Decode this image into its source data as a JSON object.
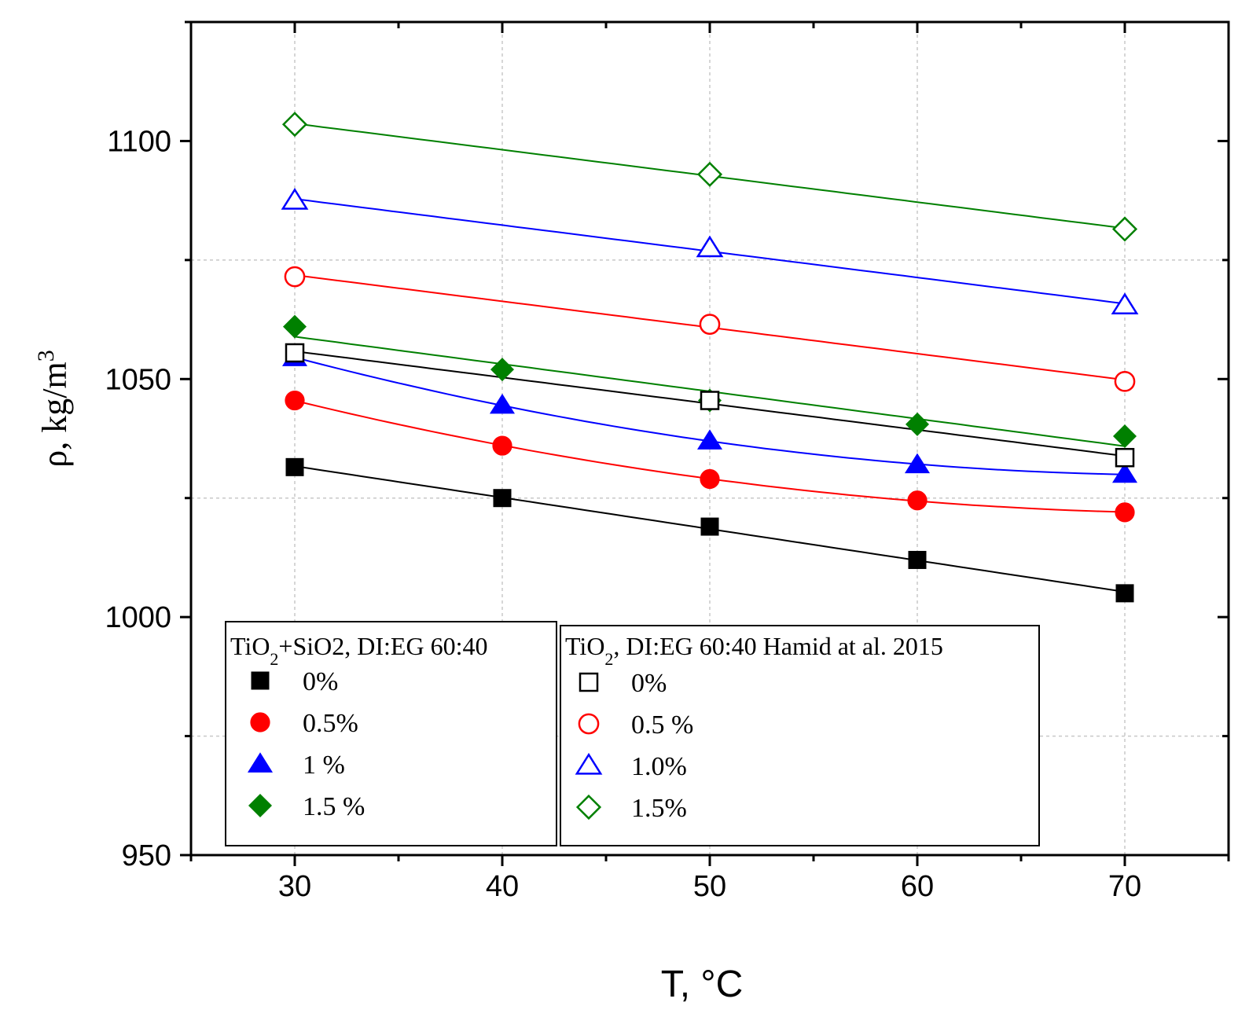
{
  "chart_data": {
    "type": "line",
    "xlabel": "T, °C",
    "ylabel": "ρ, kg/m3",
    "xlim": [
      25,
      75
    ],
    "ylim": [
      950,
      1125
    ],
    "xticks": [
      30,
      40,
      50,
      60,
      70
    ],
    "yticks": [
      950,
      1000,
      1050,
      1100
    ],
    "grid": true,
    "legends": [
      {
        "title": "TiO2+SiO2, DI:EG 60:40",
        "entries": [
          "0%",
          "0.5%",
          "1 %",
          "1.5 %"
        ]
      },
      {
        "title": "TiO2, DI:EG 60:40 Hamid at al. 2015",
        "entries": [
          "0%",
          "0.5 %",
          "1.0%",
          "1.5%"
        ]
      }
    ],
    "series": [
      {
        "name": "0%",
        "group": "TiO2+SiO2, DI:EG 60:40",
        "marker": "square",
        "filled": true,
        "color": "#000000",
        "fit": "linear",
        "x": [
          30,
          40,
          50,
          60,
          70
        ],
        "y": [
          1031.5,
          1025,
          1019,
          1012,
          1005
        ]
      },
      {
        "name": "0.5%",
        "group": "TiO2+SiO2, DI:EG 60:40",
        "marker": "circle",
        "filled": true,
        "color": "#ff0000",
        "fit": "curve",
        "x": [
          30,
          40,
          50,
          60,
          70
        ],
        "y": [
          1045.5,
          1036,
          1029,
          1024.5,
          1022
        ]
      },
      {
        "name": "1 %",
        "group": "TiO2+SiO2, DI:EG 60:40",
        "marker": "triangle",
        "filled": true,
        "color": "#0000ff",
        "fit": "curve",
        "x": [
          30,
          40,
          50,
          60,
          70
        ],
        "y": [
          1054.5,
          1044.5,
          1037,
          1032,
          1030
        ]
      },
      {
        "name": "1.5 %",
        "group": "TiO2+SiO2, DI:EG 60:40",
        "marker": "diamond",
        "filled": true,
        "color": "#008000",
        "fit": "linear",
        "x": [
          30,
          40,
          50,
          60,
          70
        ],
        "y": [
          1061,
          1052,
          1045.5,
          1040.5,
          1038
        ]
      },
      {
        "name": "0%",
        "group": "TiO2, DI:EG 60:40 Hamid at al. 2015",
        "marker": "square",
        "filled": false,
        "color": "#000000",
        "fit": "linear",
        "x": [
          30,
          50,
          70
        ],
        "y": [
          1055.5,
          1045.5,
          1033.5
        ]
      },
      {
        "name": "0.5 %",
        "group": "TiO2, DI:EG 60:40 Hamid at al. 2015",
        "marker": "circle",
        "filled": false,
        "color": "#ff0000",
        "fit": "linear",
        "x": [
          30,
          50,
          70
        ],
        "y": [
          1071.5,
          1061.5,
          1049.5
        ]
      },
      {
        "name": "1.0%",
        "group": "TiO2, DI:EG 60:40 Hamid at al. 2015",
        "marker": "triangle",
        "filled": false,
        "color": "#0000ff",
        "fit": "linear",
        "x": [
          30,
          50,
          70
        ],
        "y": [
          1087.5,
          1077.5,
          1065.5
        ]
      },
      {
        "name": "1.5%",
        "group": "TiO2, DI:EG 60:40 Hamid at al. 2015",
        "marker": "diamond",
        "filled": false,
        "color": "#008000",
        "fit": "linear",
        "x": [
          30,
          50,
          70
        ],
        "y": [
          1103.5,
          1093,
          1081.5
        ]
      }
    ]
  }
}
